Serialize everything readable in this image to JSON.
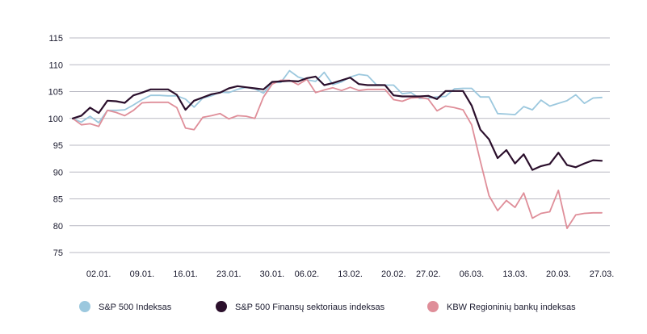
{
  "chart_data": {
    "type": "line",
    "title": "",
    "xlabel": "",
    "ylabel": "",
    "ylim": [
      75,
      115
    ],
    "yticks": [
      75,
      80,
      85,
      90,
      95,
      100,
      105,
      110,
      115
    ],
    "grid": "horizontal",
    "legend_position": "bottom",
    "x": [
      0,
      1,
      2,
      3,
      4,
      5,
      6,
      7,
      8,
      9,
      10,
      11,
      12,
      13,
      14,
      15,
      16,
      17,
      18,
      19,
      20,
      21,
      22,
      23,
      24,
      25,
      26,
      27,
      28,
      29,
      30,
      31,
      32,
      33,
      34,
      35,
      36,
      37,
      38,
      39,
      40,
      41,
      42,
      43,
      44,
      45,
      46,
      47,
      48,
      49,
      50,
      51,
      52,
      53,
      54,
      55,
      56,
      57,
      58,
      59,
      60,
      61
    ],
    "xticks": [
      {
        "i": 3,
        "label": "02.01."
      },
      {
        "i": 8,
        "label": "09.01."
      },
      {
        "i": 13,
        "label": "16.01."
      },
      {
        "i": 18,
        "label": "23.01."
      },
      {
        "i": 23,
        "label": "30.01."
      },
      {
        "i": 27,
        "label": "06.02."
      },
      {
        "i": 32,
        "label": "13.02."
      },
      {
        "i": 37,
        "label": "20.02."
      },
      {
        "i": 41,
        "label": "27.02."
      },
      {
        "i": 46,
        "label": "06.03."
      },
      {
        "i": 51,
        "label": "13.03."
      },
      {
        "i": 56,
        "label": "20.03."
      },
      {
        "i": 61,
        "label": "27.03."
      }
    ],
    "series": [
      {
        "name": "S&P 500 Indeksas",
        "color": "#9cc8de",
        "values": [
          100,
          99.3,
          100.4,
          99.2,
          101.5,
          101.5,
          101.6,
          102.5,
          103.5,
          104.3,
          104.3,
          104.2,
          104.2,
          103.6,
          102.1,
          103.8,
          104.2,
          104.9,
          104.8,
          105.4,
          105.8,
          105.5,
          104.7,
          106.7,
          106.7,
          108.9,
          107.7,
          107.2,
          106.9,
          108.6,
          106.3,
          106.8,
          107.7,
          108.2,
          108,
          106.3,
          106.2,
          106.2,
          104.6,
          104.8,
          103.7,
          103.8,
          104,
          104.1,
          105.5,
          105.6,
          105.6,
          104,
          104,
          100.9,
          100.8,
          100.7,
          102.2,
          101.6,
          103.4,
          102.3,
          102.8,
          103.3,
          104.4,
          102.8,
          103.8,
          103.9
        ]
      },
      {
        "name": "S&P 500 Finansų sektoriaus indeksas",
        "color": "#2b0f2c",
        "values": [
          100,
          100.5,
          102,
          101,
          103.3,
          103.2,
          102.9,
          104.3,
          104.8,
          105.4,
          105.4,
          105.4,
          104.4,
          101.6,
          103.3,
          103.9,
          104.5,
          104.8,
          105.6,
          106,
          105.8,
          105.6,
          105.4,
          106.8,
          106.9,
          107,
          106.9,
          107.5,
          107.8,
          106.2,
          106.6,
          107.1,
          107.6,
          106.4,
          106.2,
          106.2,
          106.2,
          104.3,
          104.1,
          104.1,
          104.1,
          104.2,
          103.6,
          105.1,
          105.1,
          105.1,
          102.4,
          97.9,
          96.1,
          92.6,
          94.1,
          91.6,
          93.3,
          90.4,
          91.1,
          91.5,
          93.6,
          91.3,
          90.9,
          91.6,
          92.2,
          92.1
        ]
      },
      {
        "name": "KBW Regioninių bankų indeksas",
        "color": "#df8e99",
        "values": [
          100,
          98.8,
          99,
          98.5,
          101.5,
          101.1,
          100.5,
          101.5,
          102.9,
          103,
          103,
          103,
          102,
          98.2,
          97.9,
          100.2,
          100.5,
          100.9,
          99.9,
          100.5,
          100.4,
          100,
          104,
          106.4,
          107.1,
          107.1,
          106.3,
          107.3,
          104.8,
          105.3,
          105.7,
          105.2,
          105.8,
          105.2,
          105.4,
          105.4,
          105.4,
          103.5,
          103.2,
          103.8,
          103.9,
          103.6,
          101.4,
          102.3,
          102,
          101.6,
          98.8,
          92,
          85.6,
          82.8,
          84.7,
          83.4,
          86.1,
          81.4,
          82.3,
          82.6,
          86.6,
          79.5,
          82,
          82.3,
          82.4,
          82.4
        ]
      }
    ]
  }
}
